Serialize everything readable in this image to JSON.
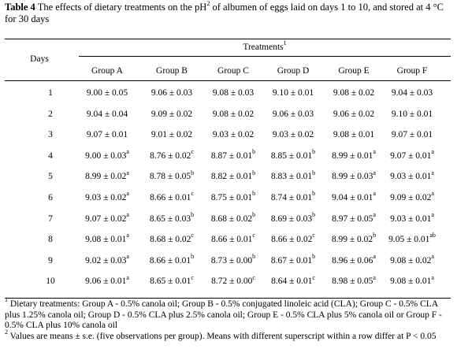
{
  "caption": {
    "label": "Table 4",
    "text_before_sup": " The effects of dietary treatments on the pH",
    "sup": "2",
    "text_after_sup": " of albumen of eggs laid on days 1 to 10, and stored at 4 °C for 30 days"
  },
  "header": {
    "days": "Days",
    "treatments": "Treatments",
    "treatments_sup": "1",
    "groups": [
      "Group A",
      "Group B",
      "Group C",
      "Group D",
      "Group E",
      "Group F"
    ]
  },
  "rows": [
    {
      "day": "1",
      "cells": [
        [
          "9.00 ± 0.05",
          ""
        ],
        [
          "9.06 ± 0.03",
          ""
        ],
        [
          "9.08 ± 0.03",
          ""
        ],
        [
          "9.10 ± 0.01",
          ""
        ],
        [
          "9.08 ± 0.02",
          ""
        ],
        [
          "9.04 ± 0.03",
          ""
        ]
      ]
    },
    {
      "day": "2",
      "cells": [
        [
          "9.04 ± 0.04",
          ""
        ],
        [
          "9.09 ± 0.02",
          ""
        ],
        [
          "9.08 ± 0.02",
          ""
        ],
        [
          "9.06 ± 0.03",
          ""
        ],
        [
          "9.06 ± 0.02",
          ""
        ],
        [
          "9.10 ± 0.01",
          ""
        ]
      ]
    },
    {
      "day": "3",
      "cells": [
        [
          "9.07 ± 0.01",
          ""
        ],
        [
          "9.01 ± 0.02",
          ""
        ],
        [
          "9.03 ± 0.02",
          ""
        ],
        [
          "9.03 ± 0.02",
          ""
        ],
        [
          "9.08 ± 0.01",
          ""
        ],
        [
          "9.07 ± 0.01",
          ""
        ]
      ]
    },
    {
      "day": "4",
      "cells": [
        [
          "9.00 ± 0.03",
          "a"
        ],
        [
          "8.76 ± 0.02",
          "c"
        ],
        [
          "8.87 ± 0.01",
          "b"
        ],
        [
          "8.85 ± 0.01",
          "b"
        ],
        [
          "8.99 ± 0.01",
          "a"
        ],
        [
          "9.07 ± 0.01",
          "a"
        ]
      ]
    },
    {
      "day": "5",
      "cells": [
        [
          "8.99 ± 0.02",
          "a"
        ],
        [
          "8.78 ± 0.05",
          "b"
        ],
        [
          "8.82 ± 0.01",
          "b"
        ],
        [
          "8.83 ± 0.01",
          "b"
        ],
        [
          "8.99 ± 0.03",
          "a"
        ],
        [
          "9.03 ± 0.01",
          "a"
        ]
      ]
    },
    {
      "day": "6",
      "cells": [
        [
          "9.03 ± 0.02",
          "a"
        ],
        [
          "8.66 ± 0.01",
          "c"
        ],
        [
          "8.75 ± 0.01",
          "b"
        ],
        [
          "8.74 ± 0.01",
          "b"
        ],
        [
          "9.04 ± 0.01",
          "a"
        ],
        [
          "9.09 ± 0.02",
          "a"
        ]
      ]
    },
    {
      "day": "7",
      "cells": [
        [
          "9.07 ± 0.02",
          "a"
        ],
        [
          "8.65 ± 0.03",
          "b"
        ],
        [
          "8.68 ± 0.02",
          "b"
        ],
        [
          "8.69 ± 0.03",
          "b"
        ],
        [
          "8.97 ± 0.05",
          "a"
        ],
        [
          "9.03 ± 0.01",
          "a"
        ]
      ]
    },
    {
      "day": "8",
      "cells": [
        [
          "9.08 ± 0.01",
          "a"
        ],
        [
          "8.68 ± 0.02",
          "c"
        ],
        [
          "8.66 ± 0.01",
          "c"
        ],
        [
          "8.66 ± 0.02",
          "c"
        ],
        [
          "8.99 ± 0.02",
          "b"
        ],
        [
          "9.05 ± 0.01",
          "ab"
        ]
      ]
    },
    {
      "day": "9",
      "cells": [
        [
          "9.02 ± 0.03",
          "a"
        ],
        [
          "8.66 ± 0.01",
          "b"
        ],
        [
          "8.73 ± 0.00",
          "b"
        ],
        [
          "8.67 ± 0.01",
          "b"
        ],
        [
          "8.96 ± 0.06",
          "a"
        ],
        [
          "9.08 ± 0.02",
          "a"
        ]
      ]
    },
    {
      "day": "10",
      "cells": [
        [
          "9.06 ± 0.01",
          "a"
        ],
        [
          "8.65 ± 0.01",
          "c"
        ],
        [
          "8.72 ± 0.00",
          "c"
        ],
        [
          "8.64 ± 0.01",
          "c"
        ],
        [
          "8.98 ± 0.05",
          "a"
        ],
        [
          "9.08 ± 0.01",
          "a"
        ]
      ]
    }
  ],
  "footnotes": {
    "note1_sup": "1",
    "note1_text": " Dietary treatments: Group A - 0.5% canola oil; Group B - 0.5% conjugated linoleic acid (CLA); Group C - 0.5% CLA plus 1.25% canola oil; Group D - 0.5% CLA plus 2.5% canola oil; Group E - 0.5% CLA plus 5% canola oil or Group F - 0.5% CLA plus 10% canola oil",
    "note2_sup": "2",
    "note2_text": " Values are means ± s.e. (five observations per group). Means with different superscript within a row differ at P < 0.05"
  }
}
